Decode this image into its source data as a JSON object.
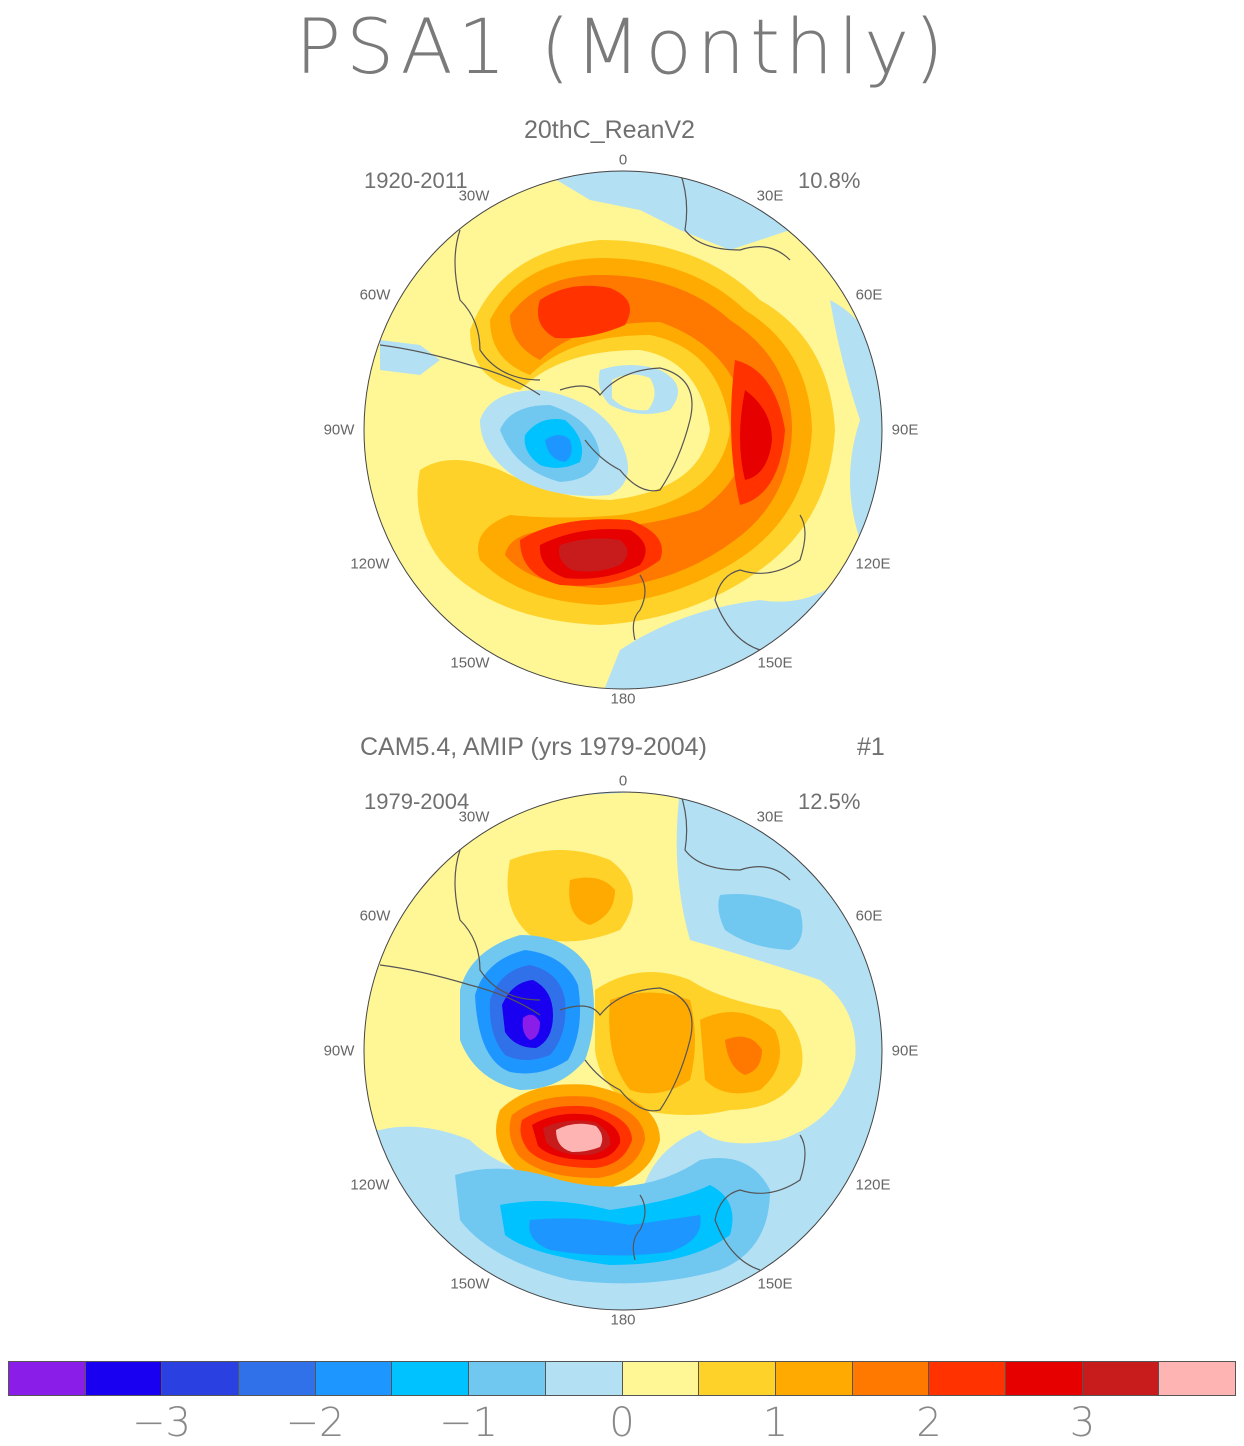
{
  "title": "PSA1 (Monthly)",
  "panels": [
    {
      "heading": "20thC_ReanV2",
      "period": "1920-2011",
      "variance": "10.8%",
      "number": ""
    },
    {
      "heading": "CAM5.4, AMIP (yrs 1979-2004)",
      "period": "1979-2004",
      "variance": "12.5%",
      "number": "#1"
    }
  ],
  "longitude_labels": {
    "top": "0",
    "tr": "30E",
    "r1": "60E",
    "r2": "90E",
    "r3": "120E",
    "br": "150E",
    "bottom": "180",
    "bl": "150W",
    "l3": "120W",
    "l2": "90W",
    "l1": "60W",
    "tl": "30W"
  },
  "colorbar": {
    "colors": [
      "#8a1ee8",
      "#1a00f0",
      "#2a40e0",
      "#3070e8",
      "#1e96ff",
      "#00c2ff",
      "#70c8f0",
      "#b4e0f4",
      "#fff696",
      "#ffd22a",
      "#ffaa00",
      "#ff7800",
      "#ff3200",
      "#e60000",
      "#c81c1c",
      "#ffb4b4"
    ],
    "tick_labels": [
      "−3",
      "−2",
      "−1",
      "0",
      "1",
      "2",
      "3"
    ]
  }
}
